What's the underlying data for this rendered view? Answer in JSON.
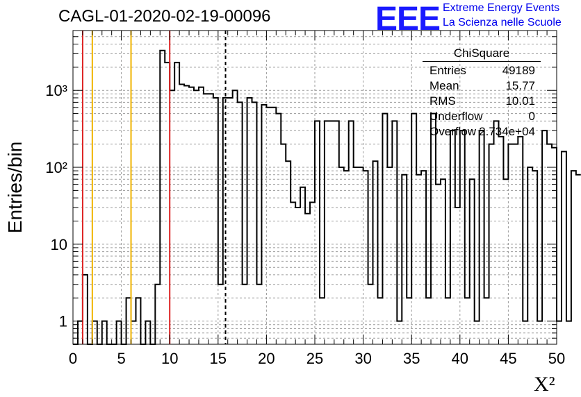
{
  "title": "CAGL-01-2020-02-19-00096",
  "logo": {
    "mark": "EEE",
    "line1": "Extreme Energy Events",
    "line2": "La Scienza nelle Scuole"
  },
  "stats": {
    "name": "ChiSquare",
    "rows": [
      {
        "label": "Entries",
        "value": "49189"
      },
      {
        "label": "Mean",
        "value": "15.77"
      },
      {
        "label": "RMS",
        "value": "10.01"
      },
      {
        "label": "Underflow",
        "value": "0"
      },
      {
        "label": "Overflow",
        "value": "2.734e+04"
      }
    ]
  },
  "chart_data": {
    "type": "bar",
    "title": "CAGL-01-2020-02-19-00096",
    "xlabel": "X²",
    "ylabel": "Entries/bin",
    "xlim": [
      0,
      50
    ],
    "ylim": [
      0.5,
      6000
    ],
    "yscale": "log",
    "grid": true,
    "bin_width": 0.5,
    "x_ticks": [
      "0",
      "5",
      "10",
      "15",
      "20",
      "25",
      "30",
      "35",
      "40",
      "45",
      "50"
    ],
    "y_ticks": [
      "1",
      "10",
      "10²",
      "10³"
    ],
    "values": [
      0,
      1,
      4,
      0,
      1,
      0,
      1,
      0,
      0,
      1,
      0,
      2,
      1,
      2,
      0,
      1,
      0,
      3,
      3300,
      2300,
      1000,
      2300,
      1200,
      1150,
      1100,
      1000,
      1100,
      900,
      900,
      800,
      3,
      800,
      800,
      1000,
      700,
      3,
      800,
      700,
      3,
      650,
      600,
      600,
      500,
      200,
      120,
      35,
      30,
      55,
      25,
      35,
      400,
      2,
      400,
      400,
      400,
      100,
      90,
      400,
      100,
      100,
      90,
      3,
      120,
      2,
      500,
      100,
      400,
      1,
      80,
      2,
      500,
      80,
      90,
      2,
      500,
      60,
      70,
      2,
      300,
      30,
      300,
      2,
      70,
      1,
      300,
      2,
      200,
      400,
      250,
      70,
      200,
      200,
      250,
      1,
      100,
      90,
      1,
      300,
      200,
      180,
      1,
      160,
      1,
      90,
      80
    ],
    "lines": [
      {
        "x": 1,
        "color": "#dd2222",
        "style": "solid"
      },
      {
        "x": 2,
        "color": "#f0b400",
        "style": "solid"
      },
      {
        "x": 6,
        "color": "#f0b400",
        "style": "solid"
      },
      {
        "x": 10,
        "color": "#dd2222",
        "style": "solid"
      },
      {
        "x": 15.77,
        "color": "#000000",
        "style": "dashed"
      }
    ]
  }
}
